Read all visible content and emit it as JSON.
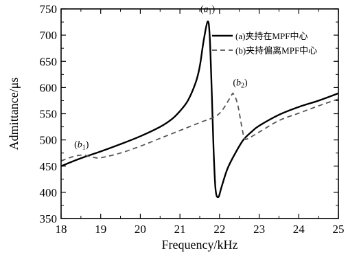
{
  "chart_data": {
    "type": "line",
    "xlabel": "Frequency/kHz",
    "ylabel": "Admittance/μs",
    "xlim": [
      18,
      25
    ],
    "ylim": [
      350,
      750
    ],
    "xticks": [
      "18",
      "19",
      "20",
      "21",
      "22",
      "23",
      "24",
      "25"
    ],
    "yticks": [
      "350",
      "400",
      "450",
      "500",
      "550",
      "600",
      "650",
      "700",
      "750"
    ],
    "legend_position": "top-right",
    "series": [
      {
        "name": "(a)夹持在MPF中心",
        "style": "solid",
        "color": "#000000",
        "points": [
          [
            18.0,
            450
          ],
          [
            18.5,
            465
          ],
          [
            19.0,
            478
          ],
          [
            19.5,
            492
          ],
          [
            20.0,
            507
          ],
          [
            20.5,
            525
          ],
          [
            20.8,
            540
          ],
          [
            21.0,
            555
          ],
          [
            21.2,
            575
          ],
          [
            21.4,
            610
          ],
          [
            21.5,
            640
          ],
          [
            21.6,
            690
          ],
          [
            21.7,
            726
          ],
          [
            21.75,
            700
          ],
          [
            21.8,
            600
          ],
          [
            21.85,
            480
          ],
          [
            21.9,
            405
          ],
          [
            21.97,
            391
          ],
          [
            22.05,
            410
          ],
          [
            22.2,
            445
          ],
          [
            22.4,
            475
          ],
          [
            22.6,
            500
          ],
          [
            22.8,
            515
          ],
          [
            23.0,
            527
          ],
          [
            23.5,
            548
          ],
          [
            24.0,
            563
          ],
          [
            24.5,
            575
          ],
          [
            25.0,
            589
          ]
        ]
      },
      {
        "name": "(b)夹持偏离MPF中心",
        "style": "dashed",
        "color": "#555555",
        "points": [
          [
            18.0,
            460
          ],
          [
            18.3,
            468
          ],
          [
            18.55,
            471
          ],
          [
            18.8,
            467
          ],
          [
            19.0,
            466
          ],
          [
            19.5,
            475
          ],
          [
            20.0,
            488
          ],
          [
            20.5,
            503
          ],
          [
            21.0,
            518
          ],
          [
            21.5,
            533
          ],
          [
            21.9,
            545
          ],
          [
            22.1,
            560
          ],
          [
            22.3,
            585
          ],
          [
            22.35,
            588
          ],
          [
            22.45,
            570
          ],
          [
            22.55,
            530
          ],
          [
            22.62,
            505
          ],
          [
            22.7,
            502
          ],
          [
            23.0,
            515
          ],
          [
            23.5,
            537
          ],
          [
            24.0,
            551
          ],
          [
            24.5,
            565
          ],
          [
            25.0,
            578
          ]
        ]
      }
    ],
    "annotations": [
      {
        "text": "(a1)",
        "base": "a",
        "sub": "1",
        "x": 21.7,
        "y": 726
      },
      {
        "text": "(b1)",
        "base": "b",
        "sub": "1",
        "x": 18.55,
        "y": 471
      },
      {
        "text": "(b2)",
        "base": "b",
        "sub": "2",
        "x": 22.35,
        "y": 588
      }
    ]
  }
}
